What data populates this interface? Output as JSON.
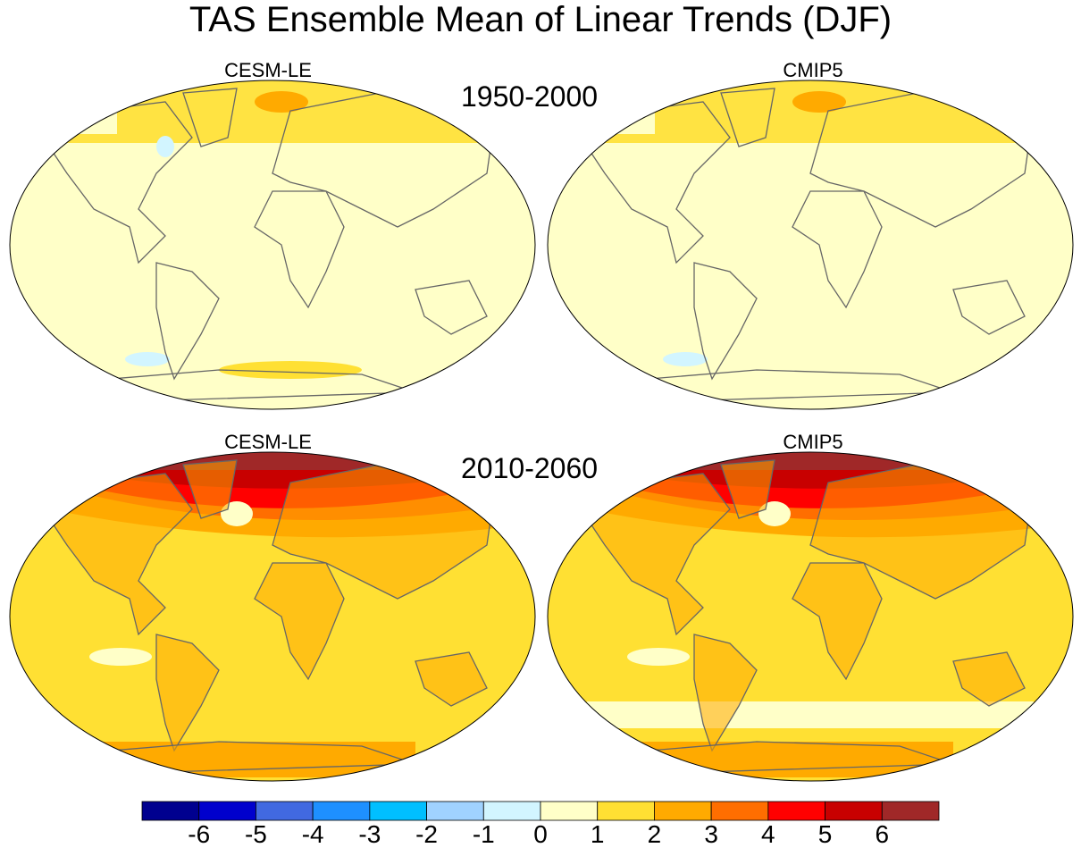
{
  "title": "TAS Ensemble Mean of Linear Trends (DJF)",
  "panels": [
    {
      "label": "CESM-LE",
      "period": "1950-2000",
      "base": "#FFFFC8"
    },
    {
      "label": "CMIP5",
      "base": "#FFFFC8"
    },
    {
      "label": "CESM-LE",
      "period": "2010-2060",
      "base": "#FFE033"
    },
    {
      "label": "CMIP5",
      "base": "#FFE033"
    }
  ],
  "colorbar": {
    "colors": [
      "#00008F",
      "#0000CD",
      "#4169E1",
      "#1E90FF",
      "#00BFFF",
      "#A0D2FF",
      "#D2F5FF",
      "#FFFFC8",
      "#FFE033",
      "#FFAA00",
      "#FF6E00",
      "#FF0000",
      "#C80000",
      "#A02828"
    ],
    "labels": [
      "-6",
      "-5",
      "-4",
      "-3",
      "-2",
      "-1",
      "0",
      "1",
      "2",
      "3",
      "4",
      "5",
      "6"
    ]
  }
}
